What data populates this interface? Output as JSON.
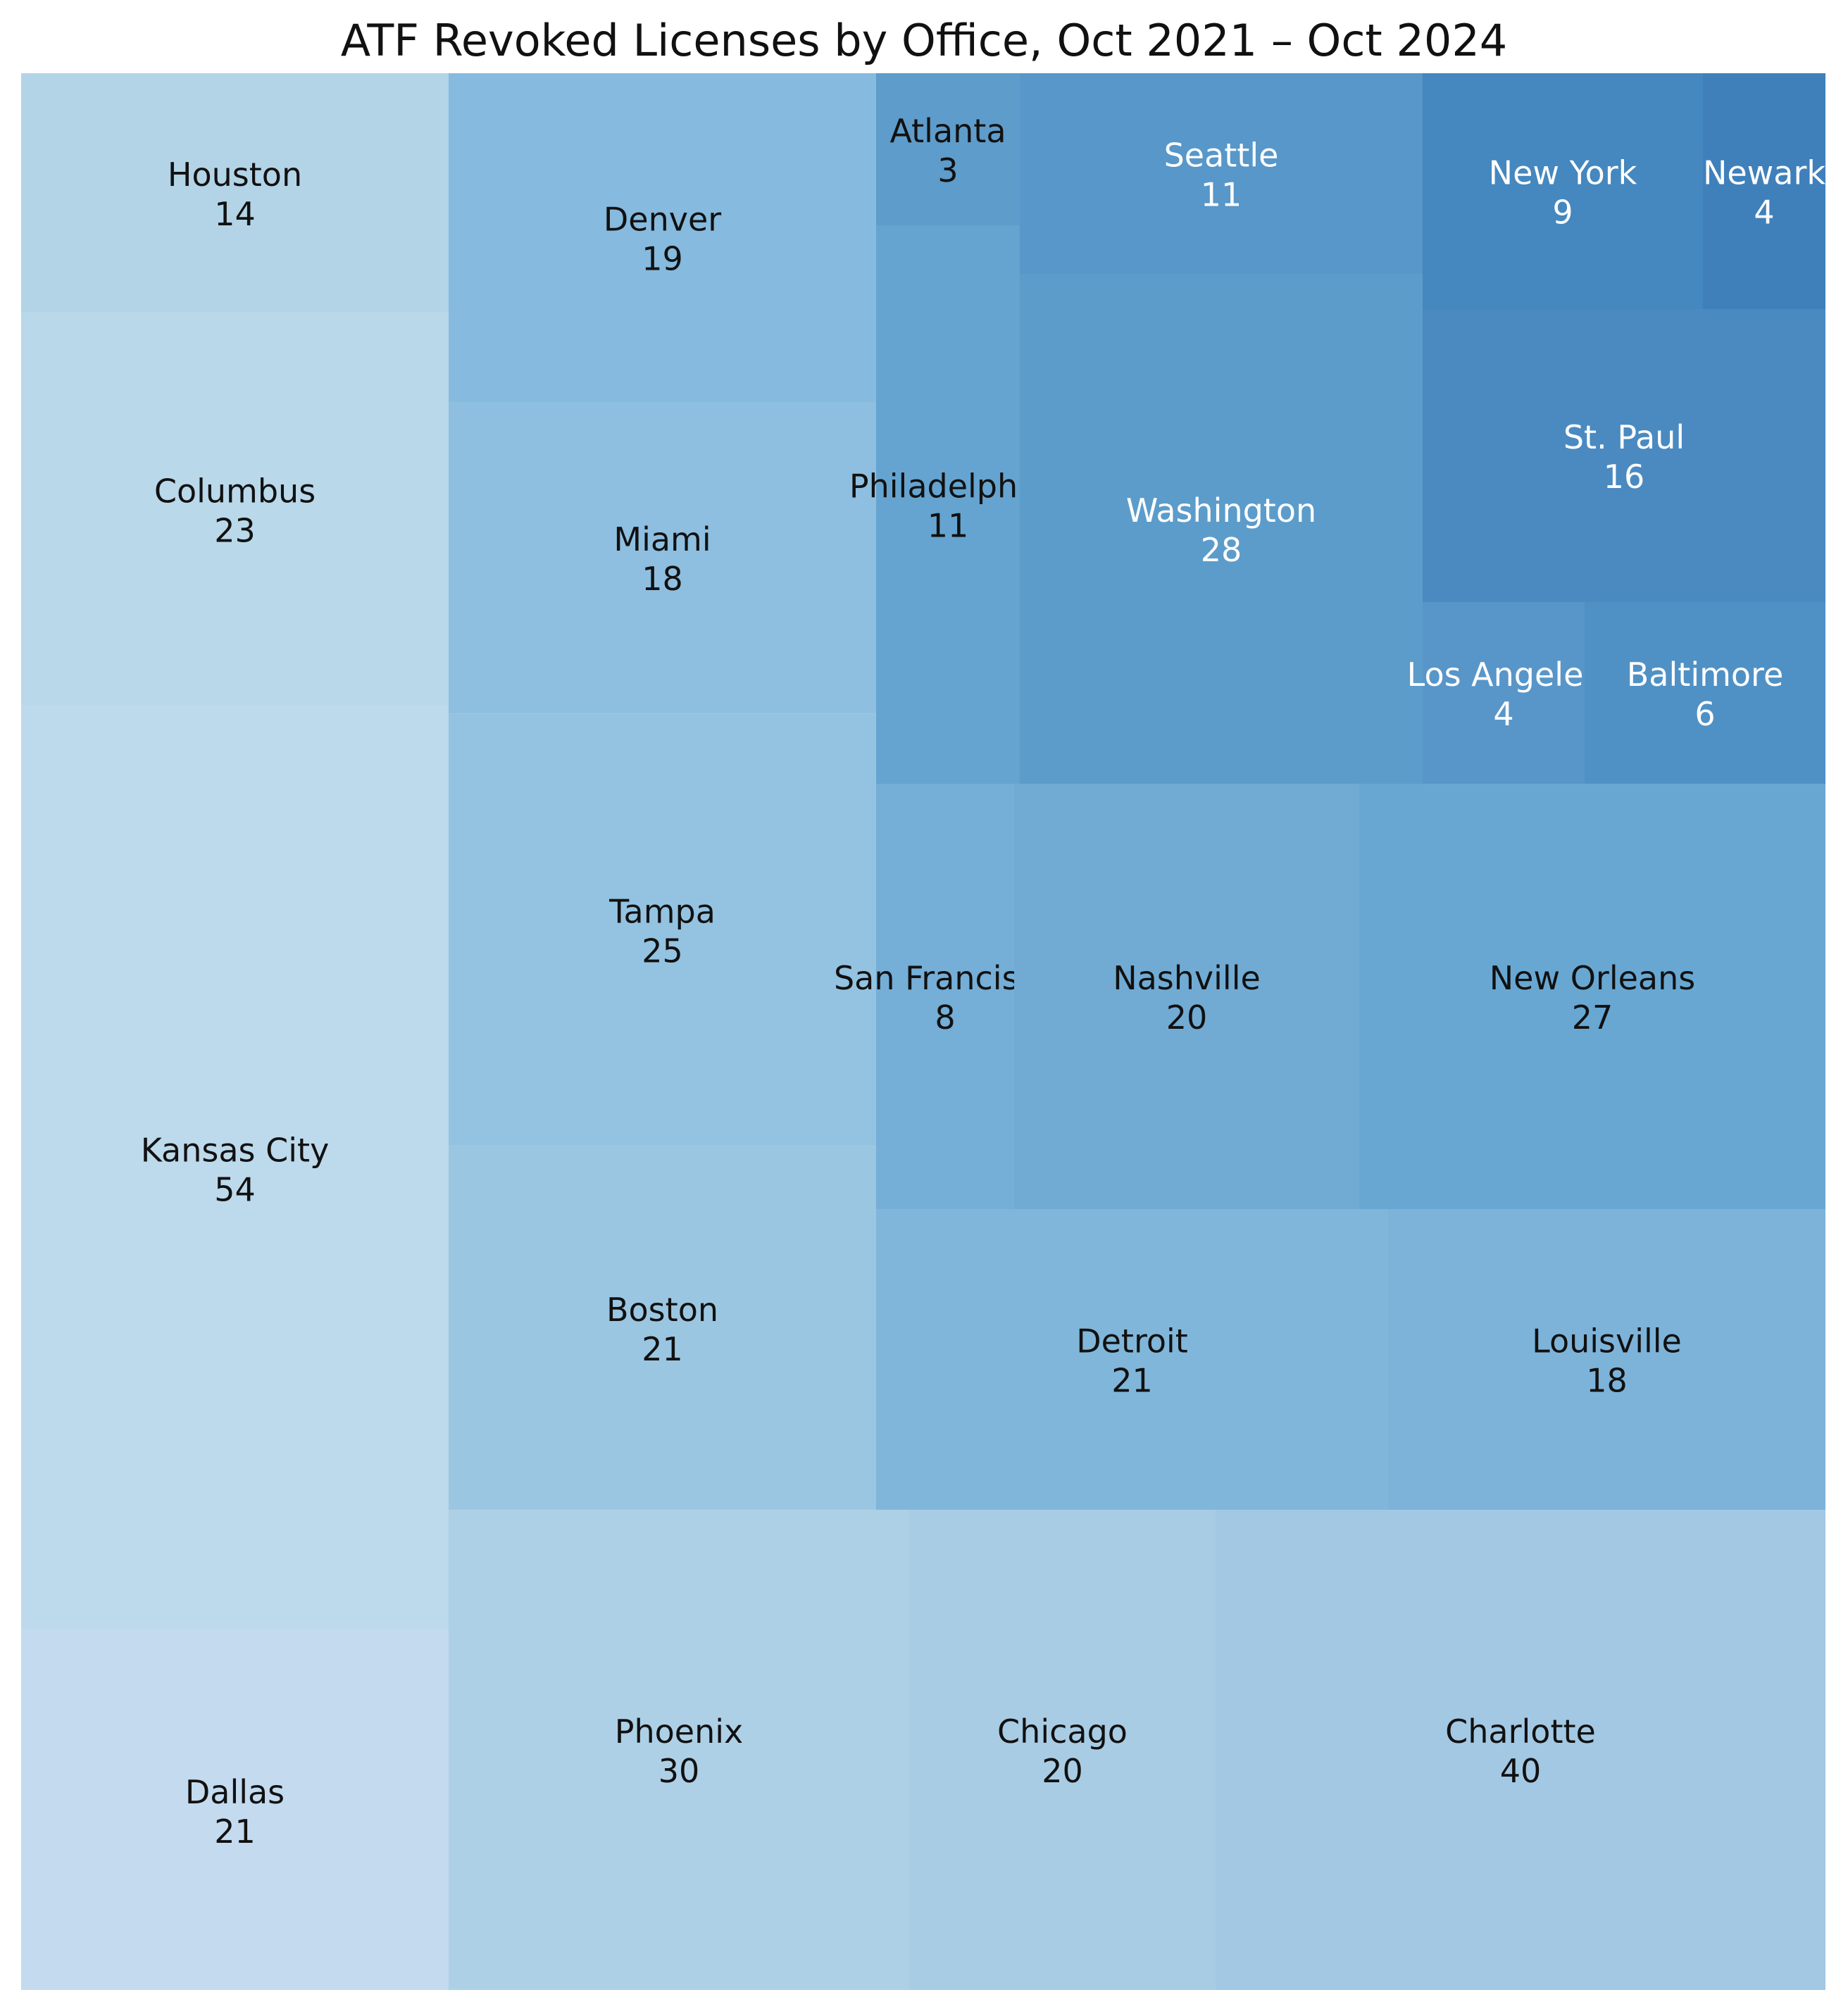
{
  "chart_data": {
    "type": "treemap",
    "title": "ATF Revoked Licenses by Office, Oct 2021 – Oct 2024",
    "items": [
      {
        "label": "Houston",
        "value": 14,
        "color": "#b3d4e7",
        "text_color": "#111111"
      },
      {
        "label": "Columbus",
        "value": 23,
        "color": "#b9d8ea",
        "text_color": "#111111"
      },
      {
        "label": "Kansas City",
        "value": 54,
        "color": "#bdd9ec",
        "text_color": "#111111"
      },
      {
        "label": "Dallas",
        "value": 21,
        "color": "#c4daee",
        "text_color": "#111111"
      },
      {
        "label": "Denver",
        "value": 19,
        "color": "#86bade",
        "text_color": "#111111"
      },
      {
        "label": "Miami",
        "value": 18,
        "color": "#8ebfe0",
        "text_color": "#111111"
      },
      {
        "label": "Tampa",
        "value": 25,
        "color": "#94c3e1",
        "text_color": "#111111"
      },
      {
        "label": "Boston",
        "value": 21,
        "color": "#9bc6e2",
        "text_color": "#111111"
      },
      {
        "label": "Atlanta",
        "value": 3,
        "color": "#5d9ccb",
        "text_color": "#111111"
      },
      {
        "label": "Philadelphia",
        "value": 11,
        "color": "#65a4d0",
        "text_color": "#111111"
      },
      {
        "label": "Seattle",
        "value": 11,
        "color": "#5797c9",
        "text_color": "#ffffff"
      },
      {
        "label": "Washington",
        "value": 28,
        "color": "#5c9cca",
        "text_color": "#ffffff"
      },
      {
        "label": "New York",
        "value": 9,
        "color": "#4587bf",
        "text_color": "#ffffff"
      },
      {
        "label": "Newark",
        "value": 4,
        "color": "#3f80bb",
        "text_color": "#ffffff"
      },
      {
        "label": "St. Paul",
        "value": 16,
        "color": "#4a8ac1",
        "text_color": "#ffffff"
      },
      {
        "label": "Los Angeles",
        "value": 4,
        "color": "#5896c9",
        "text_color": "#ffffff"
      },
      {
        "label": "Baltimore",
        "value": 6,
        "color": "#5091c5",
        "text_color": "#ffffff"
      },
      {
        "label": "San Francisco",
        "value": 8,
        "color": "#75aed6",
        "text_color": "#111111"
      },
      {
        "label": "Nashville",
        "value": 20,
        "color": "#71abd4",
        "text_color": "#111111"
      },
      {
        "label": "New Orleans",
        "value": 27,
        "color": "#68a7d2",
        "text_color": "#111111"
      },
      {
        "label": "Detroit",
        "value": 21,
        "color": "#80b6da",
        "text_color": "#111111"
      },
      {
        "label": "Louisville",
        "value": 18,
        "color": "#7db3d9",
        "text_color": "#111111"
      },
      {
        "label": "Phoenix",
        "value": 30,
        "color": "#add0e6",
        "text_color": "#111111"
      },
      {
        "label": "Chicago",
        "value": 20,
        "color": "#a8cce4",
        "text_color": "#111111"
      },
      {
        "label": "Charlotte",
        "value": 40,
        "color": "#a2c8e3",
        "text_color": "#111111"
      }
    ]
  }
}
